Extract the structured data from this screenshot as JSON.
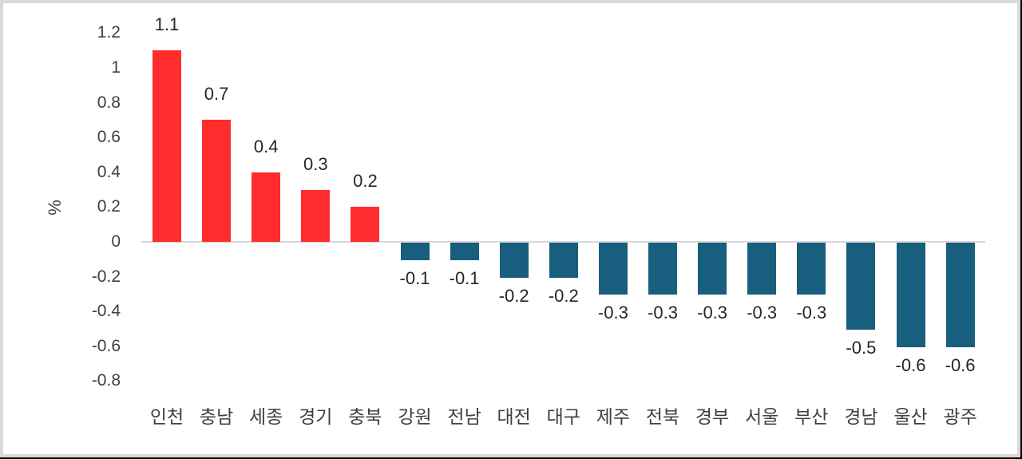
{
  "chart_data": {
    "type": "bar",
    "title": "",
    "xlabel": "",
    "ylabel": "%",
    "ylim": [
      -0.8,
      1.2
    ],
    "yticks": [
      1.2,
      1,
      0.8,
      0.6,
      0.4,
      0.2,
      0,
      -0.2,
      -0.4,
      -0.6,
      -0.8
    ],
    "ytick_labels": [
      "1.2",
      "1",
      "0.8",
      "0.6",
      "0.4",
      "0.2",
      "0",
      "-0.2",
      "-0.4",
      "-0.6",
      "-0.8"
    ],
    "grid": false,
    "legend": null,
    "categories": [
      "인천",
      "충남",
      "세종",
      "경기",
      "충북",
      "강원",
      "전남",
      "대전",
      "대구",
      "제주",
      "전북",
      "경부",
      "서울",
      "부산",
      "경남",
      "울산",
      "광주"
    ],
    "values": [
      1.1,
      0.7,
      0.4,
      0.3,
      0.2,
      -0.1,
      -0.1,
      -0.2,
      -0.2,
      -0.3,
      -0.3,
      -0.3,
      -0.3,
      -0.3,
      -0.5,
      -0.6,
      -0.6
    ],
    "value_labels": [
      "1.1",
      "0.7",
      "0.4",
      "0.3",
      "0.2",
      "-0.1",
      "-0.1",
      "-0.2",
      "-0.2",
      "-0.3",
      "-0.3",
      "-0.3",
      "-0.3",
      "-0.3",
      "-0.5",
      "-0.6",
      "-0.6"
    ],
    "colors": {
      "positive": "#ff2d2d",
      "negative": "#185e7e",
      "zero_line": "#d9d9d9",
      "text": "#404040",
      "data_label": "#262626"
    }
  }
}
